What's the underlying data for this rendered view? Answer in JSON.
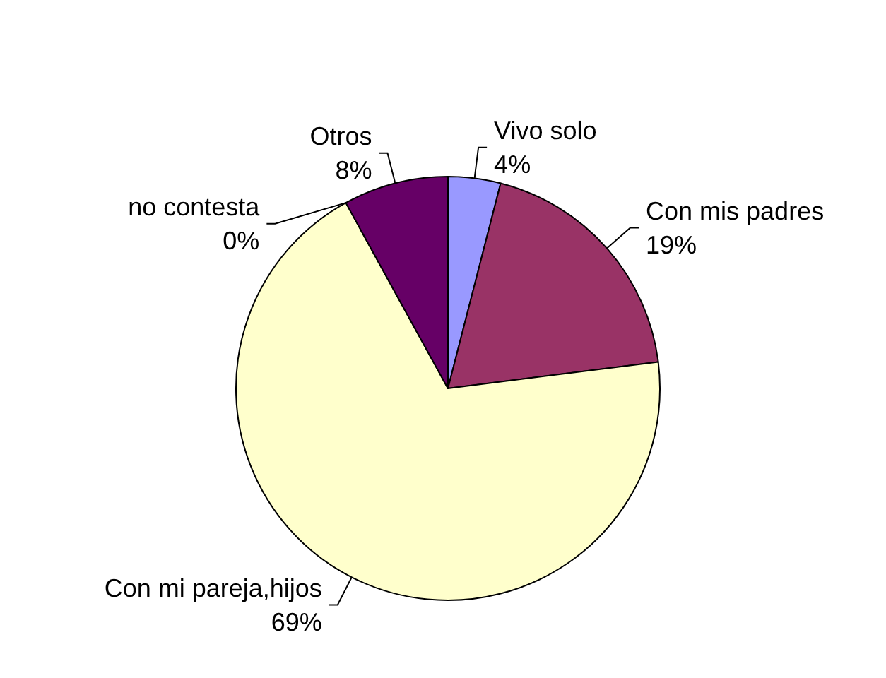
{
  "chart_data": {
    "type": "pie",
    "categories": [
      "Vivo solo",
      "Con mis padres",
      "Con mi pareja,hijos",
      "no contesta",
      "Otros"
    ],
    "values": [
      4,
      19,
      69,
      0,
      8
    ],
    "value_labels": [
      "4%",
      "19%",
      "69%",
      "0%",
      "8%"
    ],
    "colors": [
      "#9999ff",
      "#993366",
      "#ffffcc",
      "#ccffff",
      "#660066"
    ]
  }
}
